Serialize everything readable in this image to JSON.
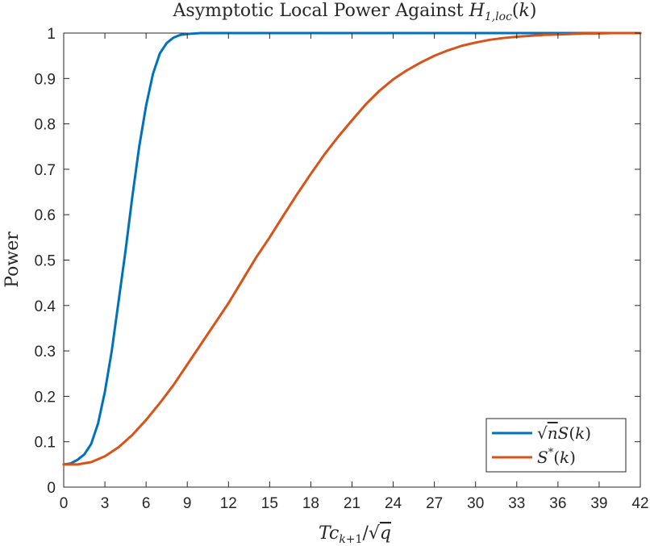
{
  "chart_data": {
    "type": "line",
    "title": "Asymptotic Local Power Against H1,loc(k)",
    "xlabel": "Tc k+1 / √q",
    "ylabel": "Power",
    "xlim": [
      0,
      42
    ],
    "ylim": [
      0,
      1
    ],
    "xticks": [
      0,
      3,
      6,
      9,
      12,
      15,
      18,
      21,
      24,
      27,
      30,
      33,
      36,
      39,
      42
    ],
    "yticks": [
      0,
      0.1,
      0.2,
      0.3,
      0.4,
      0.5,
      0.6,
      0.7,
      0.8,
      0.9,
      1
    ],
    "ytick_labels": [
      "0",
      "0.1",
      "0.2",
      "0.3",
      "0.4",
      "0.5",
      "0.6",
      "0.7",
      "0.8",
      "0.9",
      "1"
    ],
    "grid": false,
    "legend_position": "bottom-right",
    "series": [
      {
        "name": "√n S(k)",
        "color": "#0072BD",
        "x": [
          0,
          0.5,
          1,
          1.5,
          2,
          2.5,
          3,
          3.5,
          4,
          4.5,
          5,
          5.5,
          6,
          6.5,
          7,
          7.5,
          8,
          8.5,
          9,
          9.5,
          10,
          10.5,
          11,
          12,
          15,
          18,
          21,
          24,
          27,
          30,
          33,
          36,
          39,
          42
        ],
        "y": [
          0.05,
          0.052,
          0.06,
          0.072,
          0.095,
          0.14,
          0.21,
          0.3,
          0.41,
          0.52,
          0.64,
          0.75,
          0.84,
          0.91,
          0.955,
          0.978,
          0.99,
          0.996,
          0.998,
          0.999,
          1,
          1,
          1,
          1,
          1,
          1,
          1,
          1,
          1,
          1,
          1,
          1,
          1,
          1
        ]
      },
      {
        "name": "S*(k)",
        "color": "#D95319",
        "x": [
          0,
          1,
          2,
          3,
          4,
          5,
          6,
          7,
          8,
          9,
          10,
          11,
          12,
          13,
          14,
          15,
          16,
          17,
          18,
          19,
          20,
          21,
          22,
          23,
          24,
          25,
          26,
          27,
          28,
          29,
          30,
          31,
          32,
          33,
          34,
          35,
          36,
          37,
          38,
          39,
          40,
          41,
          42
        ],
        "y": [
          0.05,
          0.05,
          0.055,
          0.068,
          0.088,
          0.115,
          0.148,
          0.185,
          0.225,
          0.27,
          0.315,
          0.36,
          0.405,
          0.455,
          0.505,
          0.55,
          0.598,
          0.645,
          0.69,
          0.733,
          0.772,
          0.808,
          0.843,
          0.873,
          0.898,
          0.918,
          0.935,
          0.95,
          0.962,
          0.972,
          0.979,
          0.985,
          0.989,
          0.992,
          0.994,
          0.996,
          0.997,
          0.998,
          0.999,
          0.999,
          1,
          1,
          1
        ]
      }
    ]
  }
}
